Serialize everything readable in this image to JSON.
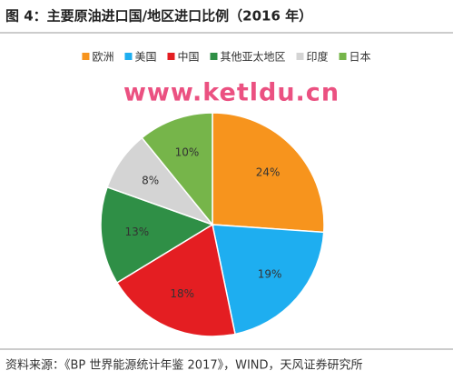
{
  "chart_data": {
    "type": "pie",
    "title": "图 4：主要原油进口国/地区进口比例（2016 年）",
    "watermark": "www.ketldu.cn",
    "source": "资料来源：《BP 世界能源统计年鉴 2017》，WIND，天风证券研究所",
    "categories": [
      "欧洲",
      "美国",
      "中国",
      "其他亚太地区",
      "印度",
      "日本"
    ],
    "values": [
      24,
      19,
      18,
      13,
      8,
      10
    ],
    "value_labels": [
      "24%",
      "19%",
      "18%",
      "13%",
      "8%",
      "10%"
    ],
    "colors": [
      "#f7941d",
      "#1eaef0",
      "#e41e22",
      "#2f8f46",
      "#d4d4d4",
      "#76b54a"
    ],
    "legend": "top"
  }
}
